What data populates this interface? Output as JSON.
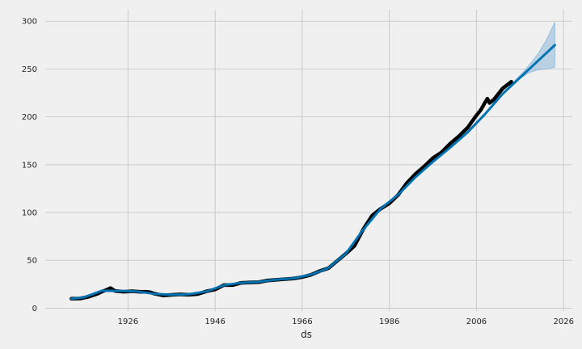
{
  "chart_data": {
    "type": "line",
    "title": "",
    "xlabel": "ds",
    "ylabel": "",
    "xlim": [
      1907,
      2028
    ],
    "ylim": [
      -3,
      312
    ],
    "grid": true,
    "x_ticks": [
      1926,
      1946,
      1966,
      1986,
      2006,
      2026
    ],
    "y_ticks": [
      0,
      50,
      100,
      150,
      200,
      250,
      300
    ],
    "colors": {
      "observed": "#000000",
      "forecast": "#0072b2",
      "interval": "#8cb8d8",
      "background": "#f0f0f0",
      "grid": "#cbcbcb"
    },
    "series": [
      {
        "role": "observed",
        "x": [
          1913,
          1915,
          1917,
          1919,
          1920,
          1921,
          1922,
          1923,
          1925,
          1927,
          1929,
          1930,
          1931,
          1932,
          1934,
          1936,
          1938,
          1940,
          1942,
          1944,
          1946,
          1948,
          1950,
          1952,
          1954,
          1956,
          1958,
          1960,
          1962,
          1964,
          1966,
          1968,
          1970,
          1972,
          1974,
          1976,
          1978,
          1980,
          1982,
          1984,
          1986,
          1988,
          1990,
          1992,
          1994,
          1996,
          1998,
          2000,
          2002,
          2004,
          2006,
          2007,
          2008,
          2008.5,
          2009,
          2010,
          2012,
          2014
        ],
        "y": [
          9.9,
          10.1,
          12.0,
          15.1,
          17.3,
          19.0,
          21.0,
          18.0,
          17.2,
          17.7,
          17.1,
          17.2,
          16.7,
          15.2,
          13.3,
          13.9,
          14.4,
          14.0,
          14.7,
          17.6,
          19.5,
          24.1,
          24.1,
          26.5,
          26.9,
          27.2,
          28.9,
          29.6,
          30.3,
          31.0,
          32.5,
          34.8,
          38.8,
          41.8,
          49.3,
          56.9,
          65.2,
          82.4,
          96.5,
          103.9,
          109.6,
          118.3,
          130.7,
          140.3,
          148.2,
          156.9,
          163.0,
          172.2,
          179.9,
          188.9,
          201.6,
          207.3,
          215.3,
          219.0,
          214.5,
          218.1,
          229.6,
          236.7
        ]
      },
      {
        "role": "forecast",
        "x": [
          1913,
          1916,
          1920,
          1924,
          1928,
          1932,
          1936,
          1940,
          1944,
          1948,
          1952,
          1956,
          1960,
          1964,
          1968,
          1972,
          1976,
          1980,
          1984,
          1988,
          1992,
          1996,
          2000,
          2004,
          2008,
          2012,
          2016,
          2020,
          2024
        ],
        "y": [
          9.8,
          11.5,
          18.2,
          18.0,
          17.5,
          15.0,
          14.0,
          14.5,
          17.5,
          24.0,
          26.5,
          27.5,
          29.8,
          31.2,
          35.0,
          42.0,
          57.0,
          82.0,
          104.0,
          118.5,
          137.0,
          153.0,
          168.0,
          184.0,
          203.0,
          224.0,
          241.0,
          258.0,
          275.0
        ]
      },
      {
        "role": "interval",
        "x": [
          2012,
          2014,
          2016,
          2018,
          2020,
          2022,
          2024
        ],
        "upper": [
          224.5,
          234.0,
          243.5,
          253.5,
          265.0,
          280.0,
          299.0
        ],
        "lower": [
          223.5,
          232.5,
          240.0,
          246.0,
          249.0,
          250.0,
          252.0
        ]
      }
    ]
  }
}
